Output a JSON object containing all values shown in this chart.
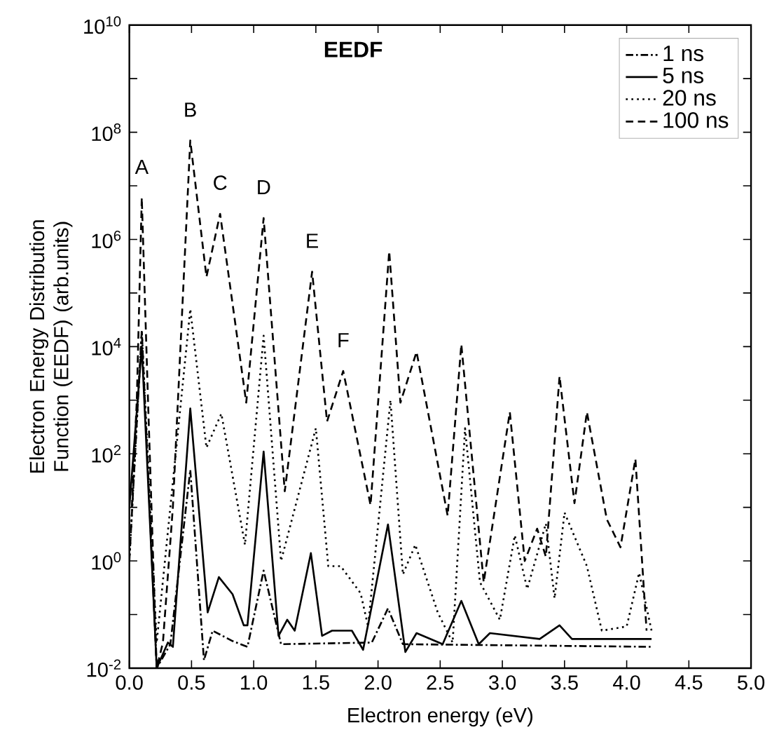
{
  "chart_data": {
    "type": "line",
    "title": "EEDF",
    "xlabel": "Electron energy (eV)",
    "ylabel": "Electron Energy Distribution Function (EEDF) (arb.units)",
    "log": "y",
    "grid": false,
    "legend": "top right",
    "marker": "none",
    "xlim": [
      0,
      5
    ],
    "ylim": [
      0.01,
      10000000000
    ],
    "xticks": [
      {
        "value": 0,
        "label": "0.0"
      },
      {
        "value": 0.5,
        "label": "0.5"
      },
      {
        "value": 1,
        "label": "1.0"
      },
      {
        "value": 1.5,
        "label": "1.5"
      },
      {
        "value": 2,
        "label": "2.0"
      },
      {
        "value": 2.5,
        "label": "2.5"
      },
      {
        "value": 3,
        "label": "3.0"
      },
      {
        "value": 3.5,
        "label": "3.5"
      },
      {
        "value": 4,
        "label": "4.0"
      },
      {
        "value": 4.5,
        "label": "4.5"
      },
      {
        "value": 5,
        "label": "5.0"
      }
    ],
    "yticks": [
      {
        "value": 0.01,
        "label": "10$^{-2}$"
      },
      {
        "value": 0.1,
        "label": null
      },
      {
        "value": 1,
        "label": "10$^{0}$"
      },
      {
        "value": 10,
        "label": null
      },
      {
        "value": 100,
        "label": "10$^{2}$"
      },
      {
        "value": 1000,
        "label": null
      },
      {
        "value": 10000,
        "label": "10$^{4}$"
      },
      {
        "value": 100000,
        "label": null
      },
      {
        "value": 1000000,
        "label": "10$^{6}$"
      },
      {
        "value": 10000000,
        "label": null
      },
      {
        "value": 100000000,
        "label": "10$^{8}$"
      },
      {
        "value": 1000000000,
        "label": null
      },
      {
        "value": 10000000000,
        "label": "10$^{10}$"
      }
    ],
    "annotations": [
      {
        "text": "A",
        "x": 0.1,
        "y": 6000000
      },
      {
        "text": "B",
        "x": 0.49,
        "y": 70000000
      },
      {
        "text": "C",
        "x": 0.73,
        "y": 3000000
      },
      {
        "text": "D",
        "x": 1.08,
        "y": 2500000
      },
      {
        "text": "E",
        "x": 1.47,
        "y": 250000
      },
      {
        "text": "F",
        "x": 1.72,
        "y": 3500
      }
    ],
    "series": [
      {
        "name": "1   ns",
        "color": "#000000",
        "line_style": "dashdot",
        "x": [
          0.0,
          0.1,
          0.22,
          0.33,
          0.49,
          0.6,
          0.67,
          0.83,
          0.95,
          1.08,
          1.22,
          1.95,
          2.08,
          2.2,
          4.2
        ],
        "values": [
          1,
          20000,
          0.01,
          0.028,
          50,
          0.014,
          0.05,
          0.032,
          0.025,
          0.66,
          0.028,
          0.03,
          0.13,
          0.028,
          0.025
        ]
      },
      {
        "name": "5   ns",
        "color": "#000000",
        "line_style": "solid",
        "x": [
          0.0,
          0.1,
          0.22,
          0.31,
          0.35,
          0.49,
          0.63,
          0.72,
          0.83,
          0.92,
          0.95,
          1.08,
          1.2,
          1.27,
          1.33,
          1.46,
          1.55,
          1.63,
          1.79,
          1.88,
          2.08,
          2.22,
          2.31,
          2.52,
          2.67,
          2.81,
          2.9,
          3.3,
          3.46,
          3.56,
          4.2
        ],
        "values": [
          10,
          10000,
          0.01,
          0.03,
          0.025,
          700,
          0.11,
          0.5,
          0.24,
          0.063,
          0.063,
          110,
          0.04,
          0.08,
          0.05,
          1.4,
          0.04,
          0.05,
          0.05,
          0.022,
          4.8,
          0.02,
          0.045,
          0.028,
          0.18,
          0.028,
          0.045,
          0.035,
          0.063,
          0.035,
          0.035
        ]
      },
      {
        "name": "20  ns",
        "color": "#000000",
        "line_style": "dotted",
        "x": [
          0.0,
          0.1,
          0.22,
          0.49,
          0.62,
          0.74,
          0.93,
          1.08,
          1.22,
          1.5,
          1.6,
          1.7,
          1.86,
          1.92,
          2.1,
          2.2,
          2.3,
          2.48,
          2.6,
          2.7,
          2.82,
          2.98,
          3.1,
          3.2,
          3.35,
          3.42,
          3.5,
          3.68,
          3.8,
          4.0,
          4.1,
          4.2
        ],
        "values": [
          1,
          20000,
          0.03,
          50000,
          130,
          560,
          2,
          16000,
          1,
          300,
          0.8,
          0.8,
          0.25,
          0.06,
          1000,
          0.56,
          2,
          0.11,
          0.03,
          300,
          0.4,
          0.08,
          3,
          0.3,
          5,
          0.2,
          8,
          0.8,
          0.05,
          0.06,
          0.6,
          0.05
        ]
      },
      {
        "name": "100 ns",
        "color": "#000000",
        "line_style": "dashed",
        "x": [
          0.02,
          0.06,
          0.1,
          0.15,
          0.22,
          0.27,
          0.35,
          0.49,
          0.62,
          0.73,
          0.94,
          1.08,
          1.25,
          1.47,
          1.59,
          1.72,
          1.94,
          2.09,
          2.18,
          2.31,
          2.56,
          2.67,
          2.85,
          3.06,
          3.18,
          3.28,
          3.35,
          3.46,
          3.58,
          3.68,
          3.84,
          3.95,
          4.07,
          4.16
        ],
        "values": [
          10,
          1000,
          6000000,
          1000,
          0.01,
          0.03,
          10,
          70000000,
          200000,
          3000000,
          900,
          2500000,
          20,
          250000,
          400,
          3500,
          11,
          600000,
          900,
          8000,
          7,
          11000,
          0.4,
          600,
          1,
          4,
          1.2,
          2800,
          12,
          600,
          6,
          1.8,
          80,
          0.05
        ]
      }
    ]
  }
}
